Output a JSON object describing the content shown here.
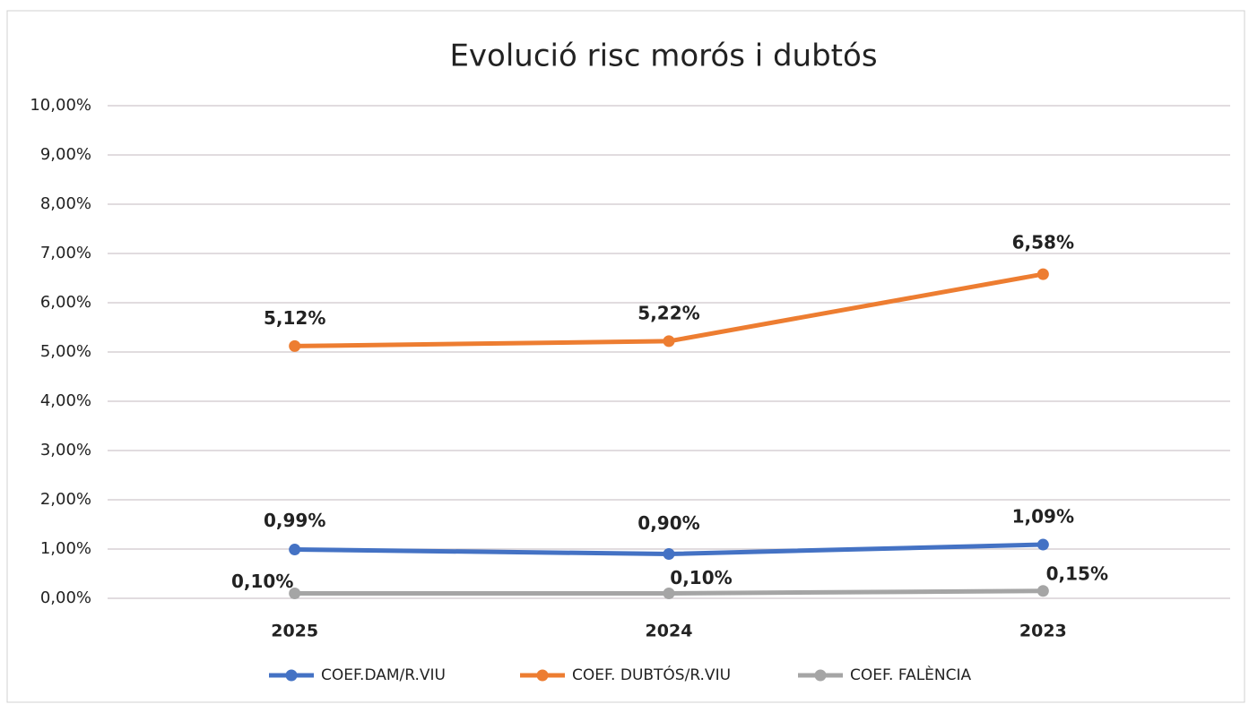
{
  "chart_data": {
    "type": "line",
    "title": "Evolució risc morós i dubtós",
    "categories": [
      "2025",
      "2024",
      "2023"
    ],
    "series": [
      {
        "name": "COEF.DAM/R.VIU",
        "color": "#4472c4",
        "values": [
          0.99,
          0.9,
          1.09
        ],
        "value_labels": [
          "0,99%",
          "0,90%",
          "1,09%"
        ]
      },
      {
        "name": "COEF. DUBTÓS/R.VIU",
        "color": "#ed7d31",
        "values": [
          5.12,
          5.22,
          6.58
        ],
        "value_labels": [
          "5,12%",
          "5,22%",
          "6,58%"
        ]
      },
      {
        "name": "COEF. FALÈNCIA",
        "color": "#a5a5a5",
        "values": [
          0.1,
          0.1,
          0.15
        ],
        "value_labels": [
          "0,10%",
          "0,10%",
          "0,15%"
        ]
      }
    ],
    "ylim": [
      0,
      10
    ],
    "yticks": [
      {
        "value": 0,
        "label": "0,00%"
      },
      {
        "value": 1,
        "label": "1,00%"
      },
      {
        "value": 2,
        "label": "2,00%"
      },
      {
        "value": 3,
        "label": "3,00%"
      },
      {
        "value": 4,
        "label": "4,00%"
      },
      {
        "value": 5,
        "label": "5,00%"
      },
      {
        "value": 6,
        "label": "6,00%"
      },
      {
        "value": 7,
        "label": "7,00%"
      },
      {
        "value": 8,
        "label": "8,00%"
      },
      {
        "value": 9,
        "label": "9,00%"
      },
      {
        "value": 10,
        "label": "10,00%"
      }
    ],
    "grid": true,
    "legend": "bottom"
  }
}
